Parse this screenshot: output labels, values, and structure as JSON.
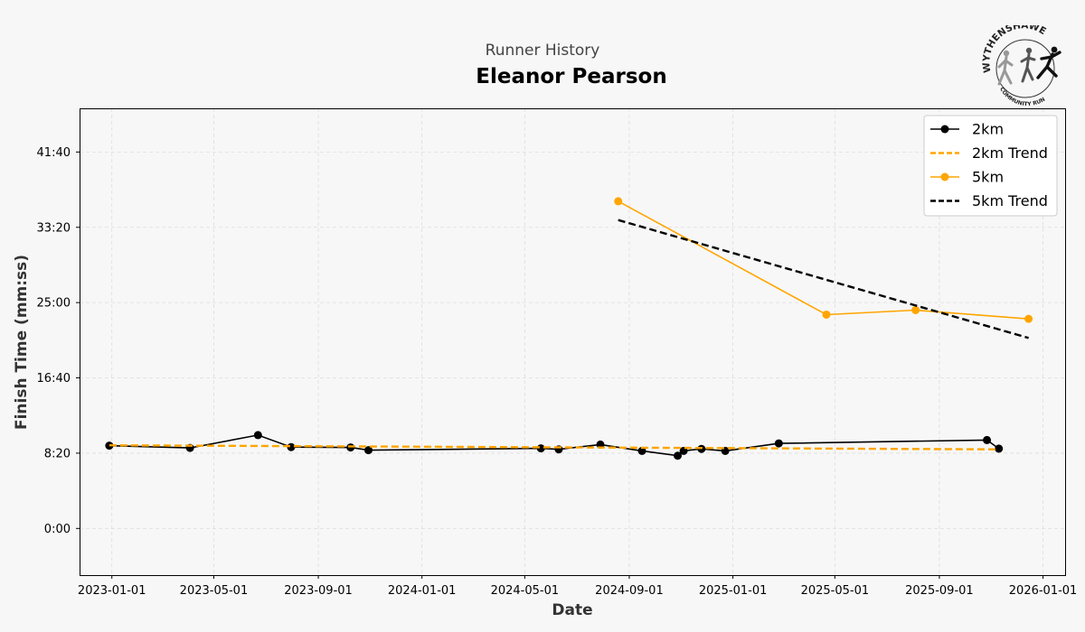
{
  "header": {
    "subtitle": "Runner History",
    "title": "Eleanor Pearson"
  },
  "logo": {
    "top_text": "WYTHENSHAWE",
    "bottom_text": "COMMUNITY RUN"
  },
  "chart_data": {
    "type": "line",
    "xlabel": "Date",
    "ylabel": "Finish Time (mm:ss)",
    "x_ticks": [
      "2023-01-01",
      "2023-05-01",
      "2023-09-01",
      "2024-01-01",
      "2024-05-01",
      "2024-09-01",
      "2025-01-01",
      "2025-05-01",
      "2025-09-01",
      "2026-01-01"
    ],
    "y_ticks": [
      "0:00",
      "8:20",
      "16:40",
      "25:00",
      "33:20",
      "41:40"
    ],
    "xlim": [
      "2022-11-24",
      "2026-01-27"
    ],
    "ylim_seconds": [
      -310,
      2790
    ],
    "grid": true,
    "legend_position": "top-right",
    "series": [
      {
        "name": "2km",
        "color": "#000000",
        "style": "solid",
        "marker": true,
        "points": [
          {
            "date": "2022-12-29",
            "time": "9:10"
          },
          {
            "date": "2023-04-03",
            "time": "8:55"
          },
          {
            "date": "2023-06-22",
            "time": "10:20"
          },
          {
            "date": "2023-07-31",
            "time": "9:00"
          },
          {
            "date": "2023-10-09",
            "time": "8:58"
          },
          {
            "date": "2023-10-30",
            "time": "8:40"
          },
          {
            "date": "2024-05-20",
            "time": "8:52"
          },
          {
            "date": "2024-06-10",
            "time": "8:45"
          },
          {
            "date": "2024-07-29",
            "time": "9:17"
          },
          {
            "date": "2024-09-16",
            "time": "8:35"
          },
          {
            "date": "2024-10-28",
            "time": "8:03"
          },
          {
            "date": "2024-11-04",
            "time": "8:35"
          },
          {
            "date": "2024-11-25",
            "time": "8:48"
          },
          {
            "date": "2024-12-23",
            "time": "8:35"
          },
          {
            "date": "2025-02-24",
            "time": "9:25"
          },
          {
            "date": "2025-10-27",
            "time": "9:47"
          },
          {
            "date": "2025-11-10",
            "time": "8:50"
          }
        ]
      },
      {
        "name": "2km Trend",
        "color": "#ffa500",
        "style": "dashed",
        "marker": false,
        "points": [
          {
            "date": "2022-12-29",
            "time": "9:12"
          },
          {
            "date": "2025-11-10",
            "time": "8:45"
          }
        ]
      },
      {
        "name": "5km",
        "color": "#ffa500",
        "style": "solid",
        "marker": true,
        "points": [
          {
            "date": "2024-08-19",
            "time": "36:13"
          },
          {
            "date": "2025-04-21",
            "time": "23:40"
          },
          {
            "date": "2025-08-04",
            "time": "24:10"
          },
          {
            "date": "2025-12-15",
            "time": "23:12"
          }
        ]
      },
      {
        "name": "5km Trend",
        "color": "#000000",
        "style": "dashed",
        "marker": false,
        "points": [
          {
            "date": "2024-08-19",
            "time": "34:08"
          },
          {
            "date": "2025-12-15",
            "time": "21:05"
          }
        ]
      }
    ]
  }
}
